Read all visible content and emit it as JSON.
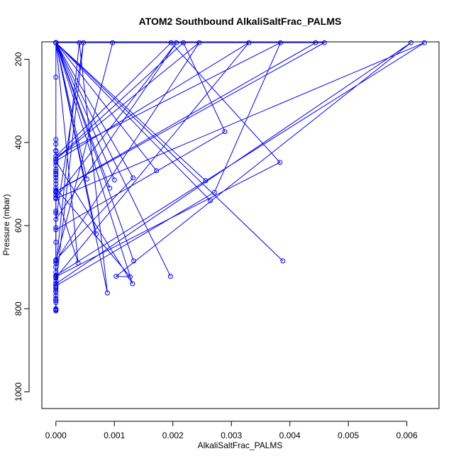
{
  "chart_data": {
    "type": "line",
    "title": "ATOM2 Southbound AlkaliSaltFrac_PALMS",
    "xlabel": "AlkaliSaltFrac_PALMS",
    "ylabel": "Pressure (mbar)",
    "xlim": [
      -0.00024,
      0.00655
    ],
    "ylim": [
      1040,
      158
    ],
    "y_reversed": true,
    "grid": false,
    "legend": "none",
    "x_ticks": [
      0.0,
      0.001,
      0.002,
      0.003,
      0.004,
      0.005,
      0.006
    ],
    "x_tick_labels": [
      "0.000",
      "0.001",
      "0.002",
      "0.003",
      "0.004",
      "0.005",
      "0.006"
    ],
    "y_ticks": [
      200,
      400,
      600,
      800,
      1000
    ],
    "y_tick_labels": [
      "200",
      "400",
      "600",
      "800",
      "1000"
    ],
    "series": [
      {
        "color": "#0000ff",
        "marker": "open-circle",
        "x": [
          0.0,
          0.0,
          0.0,
          0.0,
          0.0,
          0.0,
          0.00088,
          0.0004,
          0.0,
          0.0,
          0.0,
          0.0,
          0.00196,
          0.0,
          0.0,
          0.0,
          0.0,
          0.0,
          0.0,
          0.0,
          0.00053,
          0.0,
          0.0,
          0.00132,
          0.0,
          0.0,
          0.00289,
          0.00218,
          0.0,
          0.00245,
          0.0,
          0.00097,
          0.0,
          0.0,
          0.00383,
          0.00197,
          0.0,
          0.00384,
          0.00271,
          0.0,
          0.00047,
          0.0,
          0.00206,
          0.0,
          0.0,
          0.00607,
          0.00103,
          0.00127,
          0.0,
          0.0,
          0.00264,
          0.0,
          0.00256,
          0.0,
          0.00133,
          0.0,
          0.00388,
          0.0,
          0.0,
          0.0033,
          0.0,
          0.00131,
          0.0,
          0.0,
          0.00172,
          0.0,
          0.001,
          0.0,
          0.0,
          0.00038,
          0.0,
          0.0,
          0.00444,
          0.0,
          0.00092,
          0.0,
          0.0,
          0.00459,
          0.0,
          0.00069,
          0.0,
          0.0,
          0.0063,
          0.0,
          0.0
        ],
        "y": [
          800,
          160,
          750,
          420,
          760,
          160,
          762,
          160,
          700,
          420,
          780,
          160,
          722,
          160,
          520,
          160,
          740,
          160,
          440,
          160,
          488,
          160,
          682,
          485,
          160,
          610,
          374,
          160,
          440,
          160,
          685,
          160,
          160,
          723,
          448,
          160,
          433,
          160,
          520,
          745,
          160,
          585,
          160,
          533,
          740,
          160,
          722,
          723,
          510,
          160,
          540,
          160,
          492,
          160,
          685,
          160,
          685,
          160,
          725,
          160,
          445,
          740,
          160,
          160,
          468,
          160,
          490,
          160,
          520,
          690,
          160,
          518,
          160,
          160,
          510,
          160,
          518,
          160,
          160,
          620,
          160,
          535,
          160,
          720,
          243
        ]
      },
      {
        "color": "#0000ff",
        "marker": "open-circle",
        "x": [
          0.0,
          0.0,
          0.0,
          0.0,
          0.0,
          0.0,
          0.0,
          0.0,
          0.0,
          0.0,
          0.0,
          0.0,
          0.0,
          0.0,
          0.0,
          0.0,
          0.0,
          0.0,
          0.0,
          0.0,
          0.0,
          0.0,
          0.0,
          0.0,
          0.0,
          0.0,
          0.0,
          0.0,
          0.0,
          0.0,
          0.0,
          0.0,
          0.0,
          0.0,
          0.0,
          0.0,
          0.0,
          0.0,
          0.0,
          0.0,
          0.0,
          0.0
        ],
        "y": [
          393,
          404,
          421,
          440,
          448,
          455,
          465,
          470,
          475,
          478,
          485,
          492,
          500,
          515,
          520,
          527,
          535,
          565,
          570,
          605,
          640,
          685,
          690,
          700,
          712,
          720,
          726,
          733,
          740,
          748,
          755,
          760,
          768,
          775,
          780,
          785,
          801,
          803,
          805,
          690,
          720,
          740
        ]
      }
    ]
  }
}
